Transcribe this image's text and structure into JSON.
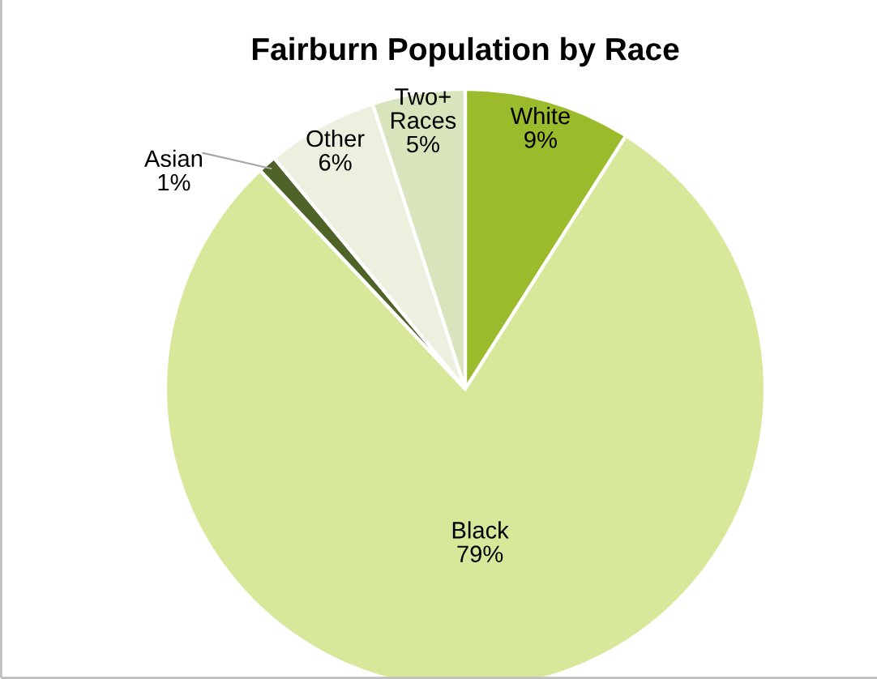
{
  "chart_data": {
    "type": "pie",
    "title": "Fairburn Population by Race",
    "categories": [
      "White",
      "Black",
      "Asian",
      "Other",
      "Two+\nRaces"
    ],
    "values": [
      9,
      79,
      1,
      6,
      5
    ],
    "value_labels": [
      "9%",
      "79%",
      "1%",
      "6%",
      "5%"
    ],
    "colors": [
      "#9bbb2c",
      "#d7e89b",
      "#4f6228",
      "#ebf1de",
      "#d8e4bc"
    ]
  }
}
